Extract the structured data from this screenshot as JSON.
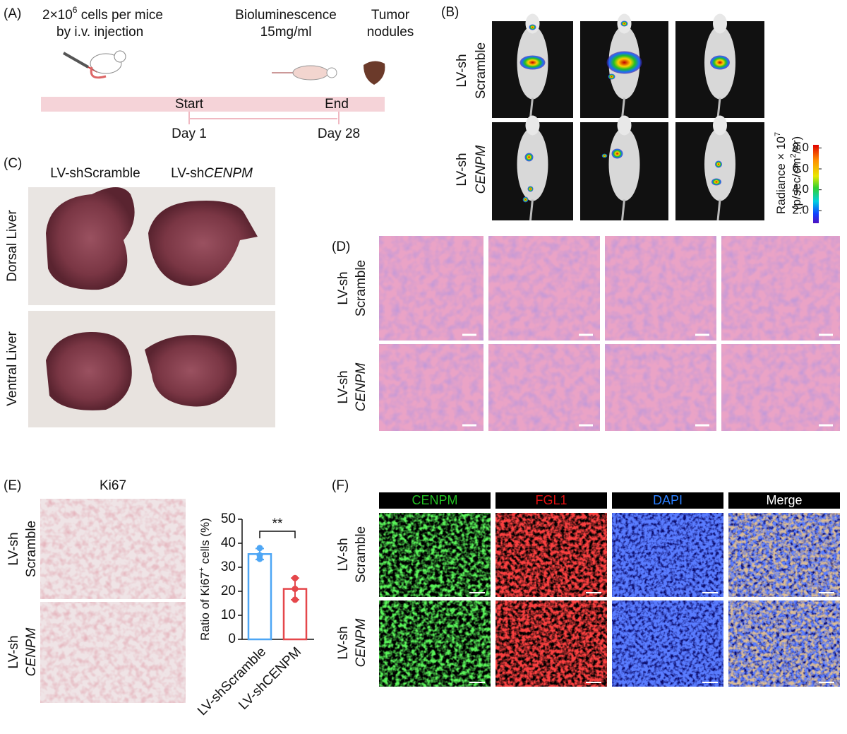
{
  "panels": {
    "A": {
      "label": "(A)",
      "injection_pre": "2×10",
      "injection_sup": "6",
      "injection_post": " cells per mice",
      "injection_line2": "by i.v. injection",
      "imaging": [
        "Bioluminescence",
        "15mg/ml"
      ],
      "harvest": [
        "Tumor",
        "nodules"
      ],
      "start": "Start",
      "end": "End",
      "day_start": "Day 1",
      "day_end": "Day 28"
    },
    "B": {
      "label": "(B)",
      "rows": [
        {
          "line1": "LV-sh",
          "line2": "Scramble"
        },
        {
          "line1": "LV-sh",
          "line2": "CENPM"
        }
      ],
      "colorbar": {
        "title": "Radiance × 10",
        "title_sup": "7",
        "unit_pre": "(p/sec/cm",
        "unit_sup": "2",
        "unit_post": "/sr)",
        "lim": [
          0.8,
          8.3
        ],
        "ticks": [
          {
            "value": 2,
            "label": "2.0"
          },
          {
            "value": 4,
            "label": "4.0"
          },
          {
            "value": 6,
            "label": "6.0"
          },
          {
            "value": 8,
            "label": "8.0"
          }
        ]
      }
    },
    "C": {
      "label": "(C)",
      "col1": "LV-shScramble",
      "col2": "LV-sh",
      "col2_italic": "CENPM",
      "rows": [
        "Dorsal Liver",
        "Ventral Liver"
      ]
    },
    "D": {
      "label": "(D)",
      "rows": [
        {
          "line1": "LV-sh",
          "line2": "Scramble"
        },
        {
          "line1": "LV-sh",
          "line2": "CENPM"
        }
      ]
    },
    "E": {
      "label": "(E)",
      "stain": "Ki67",
      "rows": [
        {
          "line1": "LV-sh",
          "line2": "Scramble"
        },
        {
          "line1": "LV-sh",
          "line2": "CENPM"
        }
      ]
    },
    "F": {
      "label": "(F)",
      "channels": [
        "CENPM",
        "FGL1",
        "DAPI",
        "Merge"
      ],
      "rows": [
        {
          "line1": "LV-sh",
          "line2": "Scramble"
        },
        {
          "line1": "LV-sh",
          "line2": "CENPM"
        }
      ]
    }
  },
  "chart_data": {
    "type": "bar",
    "categories": [
      "LV-shScramble",
      "LV-shCENPM"
    ],
    "values": [
      35.5,
      21
    ],
    "errors": [
      2.3,
      4.5
    ],
    "points": [
      [
        38,
        35,
        33.5
      ],
      [
        25.5,
        21,
        16.5
      ]
    ],
    "colors": [
      "#4da6f5",
      "#e5474b"
    ],
    "ylabel": {
      "text": "Ratio of Ki67",
      "sup": "+",
      "rest": " cells (%)"
    },
    "significance": "**",
    "ylim": [
      0,
      50
    ],
    "yticks": [
      0,
      10,
      20,
      30,
      40,
      50
    ]
  }
}
